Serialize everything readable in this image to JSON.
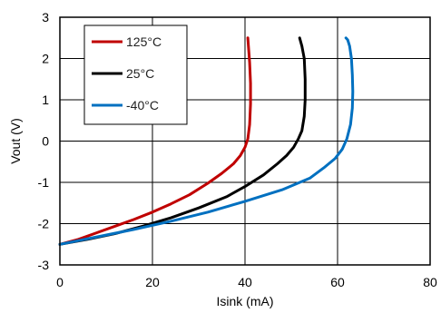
{
  "chart_data": {
    "type": "line",
    "title": "",
    "xlabel": "Isink (mA)",
    "ylabel": "Vout (V)",
    "xlim": [
      0,
      80
    ],
    "ylim": [
      -3,
      3
    ],
    "x_ticks": [
      0,
      20,
      40,
      60,
      80
    ],
    "y_ticks": [
      -3,
      -2,
      -1,
      0,
      1,
      2,
      3
    ],
    "grid": true,
    "legend_position": "top-left",
    "series": [
      {
        "name": "125°C",
        "color": "#c00000",
        "x": [
          0,
          4,
          8,
          12,
          16,
          20,
          24,
          28,
          32,
          35,
          37.5,
          39,
          40,
          40.6,
          41,
          41.2,
          41.2,
          41,
          40.8,
          40.6
        ],
        "y": [
          -2.5,
          -2.38,
          -2.22,
          -2.06,
          -1.9,
          -1.72,
          -1.52,
          -1.3,
          -1.02,
          -0.78,
          -0.55,
          -0.35,
          -0.15,
          0.05,
          0.4,
          0.9,
          1.4,
          1.9,
          2.2,
          2.5
        ]
      },
      {
        "name": "25°C",
        "color": "#000000",
        "x": [
          0,
          6,
          12,
          18,
          24,
          30,
          36,
          40,
          44,
          47,
          49,
          50.5,
          51.5,
          52.3,
          52.8,
          53,
          53,
          52.8,
          52.3,
          51.8
        ],
        "y": [
          -2.5,
          -2.38,
          -2.24,
          -2.06,
          -1.86,
          -1.62,
          -1.35,
          -1.1,
          -0.82,
          -0.55,
          -0.35,
          -0.15,
          0.05,
          0.25,
          0.6,
          1.0,
          1.5,
          2.0,
          2.3,
          2.5
        ]
      },
      {
        "name": "-40°C",
        "color": "#0070c0",
        "x": [
          0,
          8,
          16,
          24,
          32,
          40,
          48,
          54,
          57,
          59.5,
          61,
          62,
          62.8,
          63.2,
          63.3,
          63.2,
          63,
          62.6,
          62.2,
          61.8
        ],
        "y": [
          -2.5,
          -2.32,
          -2.14,
          -1.94,
          -1.72,
          -1.46,
          -1.18,
          -0.9,
          -0.65,
          -0.42,
          -0.2,
          0.05,
          0.4,
          0.8,
          1.2,
          1.6,
          2.0,
          2.3,
          2.45,
          2.5
        ]
      }
    ]
  }
}
